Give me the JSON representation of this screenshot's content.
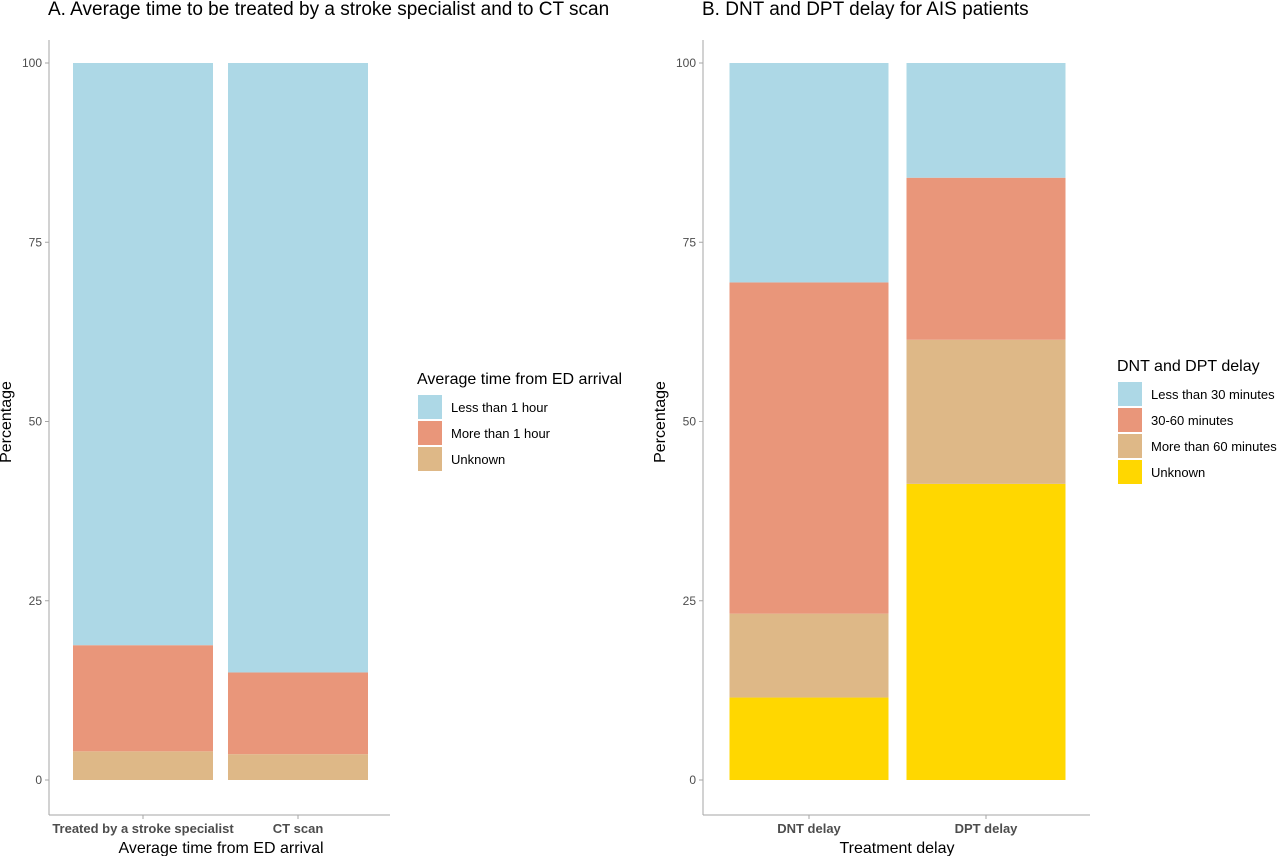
{
  "chart_data": [
    {
      "type": "bar",
      "stacked": true,
      "title": "A. Average time to be treated by a stroke specialist and to CT scan",
      "xlabel": "Average time from ED arrival",
      "ylabel": "Percentage",
      "ylim": [
        0,
        100
      ],
      "yticks": [
        0,
        25,
        50,
        75,
        100
      ],
      "categories": [
        "Treated by a stroke specialist",
        "CT scan"
      ],
      "legend_title": "Average time from ED arrival",
      "legend_position": "right",
      "series": [
        {
          "name": "Less than 1 hour",
          "color": "#add8e6",
          "values": [
            81.2,
            85.0
          ]
        },
        {
          "name": "More than 1 hour",
          "color": "#e9967a",
          "values": [
            14.8,
            11.4
          ]
        },
        {
          "name": "Unknown",
          "color": "#deb887",
          "values": [
            4.0,
            3.6
          ]
        }
      ],
      "grid": false
    },
    {
      "type": "bar",
      "stacked": true,
      "title": "B. DNT and DPT delay for AIS patients",
      "xlabel": "Treatment delay",
      "ylabel": "Percentage",
      "ylim": [
        0,
        100
      ],
      "yticks": [
        0,
        25,
        50,
        75,
        100
      ],
      "categories": [
        "DNT delay",
        "DPT delay"
      ],
      "legend_title": "DNT and DPT delay",
      "legend_position": "right",
      "series": [
        {
          "name": "Less than 30 minutes",
          "color": "#add8e6",
          "values": [
            30.6,
            16.0
          ]
        },
        {
          "name": "30-60 minutes",
          "color": "#e9967a",
          "values": [
            46.2,
            22.6
          ]
        },
        {
          "name": "More than 60 minutes",
          "color": "#deb887",
          "values": [
            11.7,
            20.1
          ]
        },
        {
          "name": "Unknown",
          "color": "#ffd700",
          "values": [
            11.5,
            41.3
          ]
        }
      ],
      "grid": false
    }
  ]
}
